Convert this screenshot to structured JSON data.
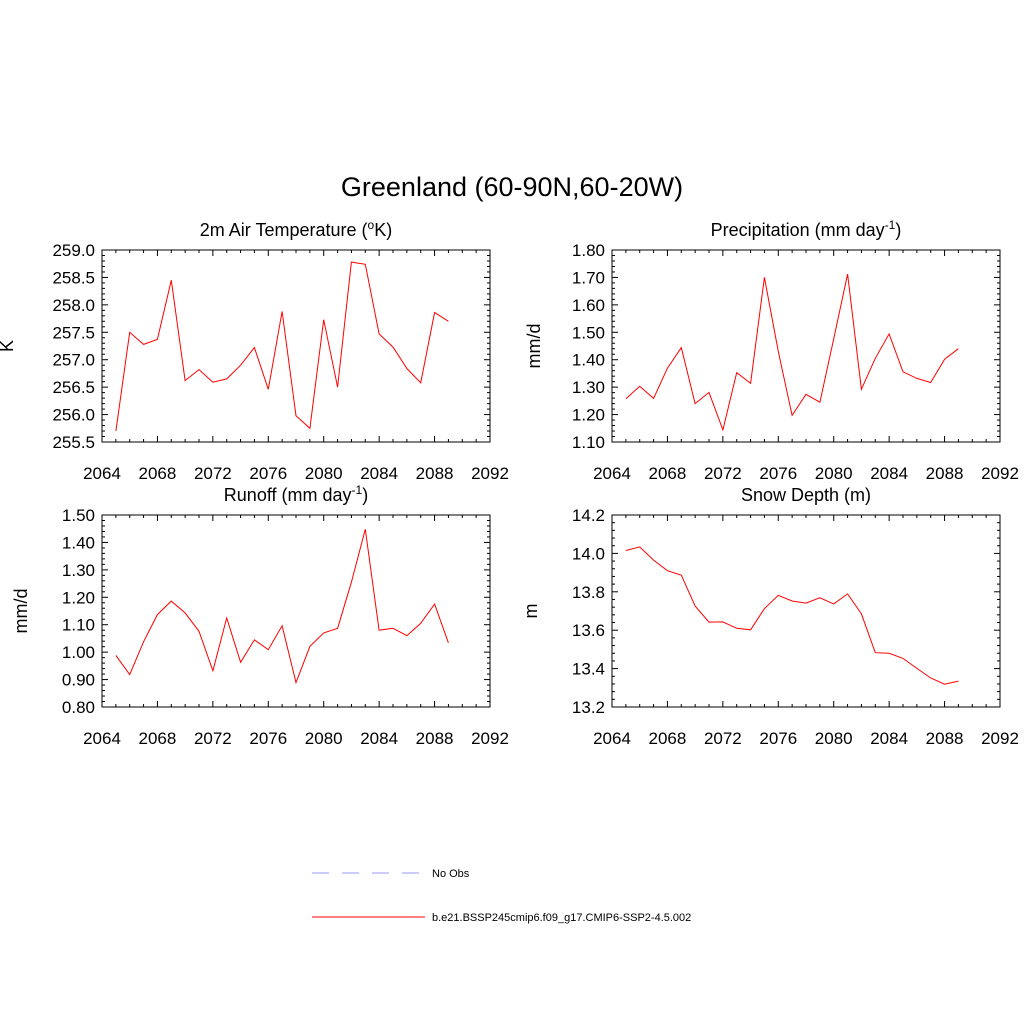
{
  "figure": {
    "title": "Greenland (60-90N,60-20W)"
  },
  "legend": {
    "entries": [
      {
        "label": "No Obs",
        "color": "#9999ff",
        "dash": true
      },
      {
        "label": "b.e21.BSSP245cmip6.f09_g17.CMIP6-SSP2-4.5.002",
        "color": "#ff0000",
        "dash": false
      }
    ]
  },
  "chart_data": [
    {
      "type": "line",
      "id": "temp",
      "title": "2m Air Temperature (",
      "title_sup": "o",
      "title_after": "K)",
      "ylabel": "K",
      "xlim": [
        2064,
        2092
      ],
      "ylim": [
        255.5,
        259.0
      ],
      "xticks": [
        2064,
        2068,
        2072,
        2076,
        2080,
        2084,
        2088,
        2092
      ],
      "yticks": [
        "255.5",
        "256.0",
        "256.5",
        "257.0",
        "257.5",
        "258.0",
        "258.5",
        "259.0"
      ],
      "color": "#ff0000",
      "x": [
        2065,
        2066,
        2067,
        2068,
        2069,
        2070,
        2071,
        2072,
        2073,
        2074,
        2075,
        2076,
        2077,
        2078,
        2079,
        2080,
        2081,
        2082,
        2083,
        2084,
        2085,
        2086,
        2087,
        2088,
        2089
      ],
      "y": [
        255.7,
        257.5,
        257.28,
        257.37,
        258.45,
        256.62,
        256.82,
        256.59,
        256.65,
        256.9,
        257.22,
        256.46,
        257.88,
        255.98,
        255.75,
        257.73,
        256.5,
        258.78,
        258.74,
        257.47,
        257.23,
        256.84,
        256.58,
        257.86,
        257.7
      ]
    },
    {
      "type": "line",
      "id": "precip",
      "title": "Precipitation (mm day",
      "title_sup": "-1",
      "title_after": ")",
      "ylabel": "mm/d",
      "xlim": [
        2064,
        2092
      ],
      "ylim": [
        1.1,
        1.8
      ],
      "xticks": [
        2064,
        2068,
        2072,
        2076,
        2080,
        2084,
        2088,
        2092
      ],
      "yticks": [
        "1.10",
        "1.20",
        "1.30",
        "1.40",
        "1.50",
        "1.60",
        "1.70",
        "1.80"
      ],
      "color": "#ff0000",
      "x": [
        2065,
        2066,
        2067,
        2068,
        2069,
        2070,
        2071,
        2072,
        2073,
        2074,
        2075,
        2076,
        2077,
        2078,
        2079,
        2080,
        2081,
        2082,
        2083,
        2084,
        2085,
        2086,
        2087,
        2088,
        2089
      ],
      "y": [
        1.258,
        1.303,
        1.259,
        1.369,
        1.444,
        1.24,
        1.281,
        1.144,
        1.353,
        1.314,
        1.7,
        1.43,
        1.197,
        1.274,
        1.245,
        1.476,
        1.712,
        1.292,
        1.405,
        1.494,
        1.356,
        1.332,
        1.317,
        1.402,
        1.44
      ]
    },
    {
      "type": "line",
      "id": "runoff",
      "title": "Runoff (mm day",
      "title_sup": "-1",
      "title_after": ")",
      "ylabel": "mm/d",
      "xlim": [
        2064,
        2092
      ],
      "ylim": [
        0.8,
        1.5
      ],
      "xticks": [
        2064,
        2068,
        2072,
        2076,
        2080,
        2084,
        2088,
        2092
      ],
      "yticks": [
        "0.80",
        "0.90",
        "1.00",
        "1.10",
        "1.20",
        "1.30",
        "1.40",
        "1.50"
      ],
      "color": "#ff0000",
      "x": [
        2065,
        2066,
        2067,
        2068,
        2069,
        2070,
        2071,
        2072,
        2073,
        2074,
        2075,
        2076,
        2077,
        2078,
        2079,
        2080,
        2081,
        2082,
        2083,
        2084,
        2085,
        2086,
        2087,
        2088,
        2089
      ],
      "y": [
        0.988,
        0.918,
        1.038,
        1.137,
        1.186,
        1.143,
        1.076,
        0.932,
        1.125,
        0.963,
        1.045,
        1.009,
        1.096,
        0.889,
        1.021,
        1.07,
        1.087,
        1.255,
        1.448,
        1.08,
        1.087,
        1.06,
        1.105,
        1.175,
        1.034
      ]
    },
    {
      "type": "line",
      "id": "snow",
      "title": "Snow Depth (m)",
      "title_sup": "",
      "title_after": "",
      "ylabel": "m",
      "xlim": [
        2064,
        2092
      ],
      "ylim": [
        13.2,
        14.2
      ],
      "xticks": [
        2064,
        2068,
        2072,
        2076,
        2080,
        2084,
        2088,
        2092
      ],
      "yticks": [
        "13.2",
        "13.4",
        "13.6",
        "13.8",
        "14.0",
        "14.2"
      ],
      "color": "#ff0000",
      "x": [
        2065,
        2066,
        2067,
        2068,
        2069,
        2070,
        2071,
        2072,
        2073,
        2074,
        2075,
        2076,
        2077,
        2078,
        2079,
        2080,
        2081,
        2082,
        2083,
        2084,
        2085,
        2086,
        2087,
        2088,
        2089
      ],
      "y": [
        14.015,
        14.034,
        13.965,
        13.91,
        13.887,
        13.726,
        13.642,
        13.643,
        13.61,
        13.602,
        13.712,
        13.782,
        13.752,
        13.741,
        13.769,
        13.737,
        13.789,
        13.685,
        13.483,
        13.48,
        13.453,
        13.401,
        13.351,
        13.319,
        13.335
      ]
    }
  ]
}
